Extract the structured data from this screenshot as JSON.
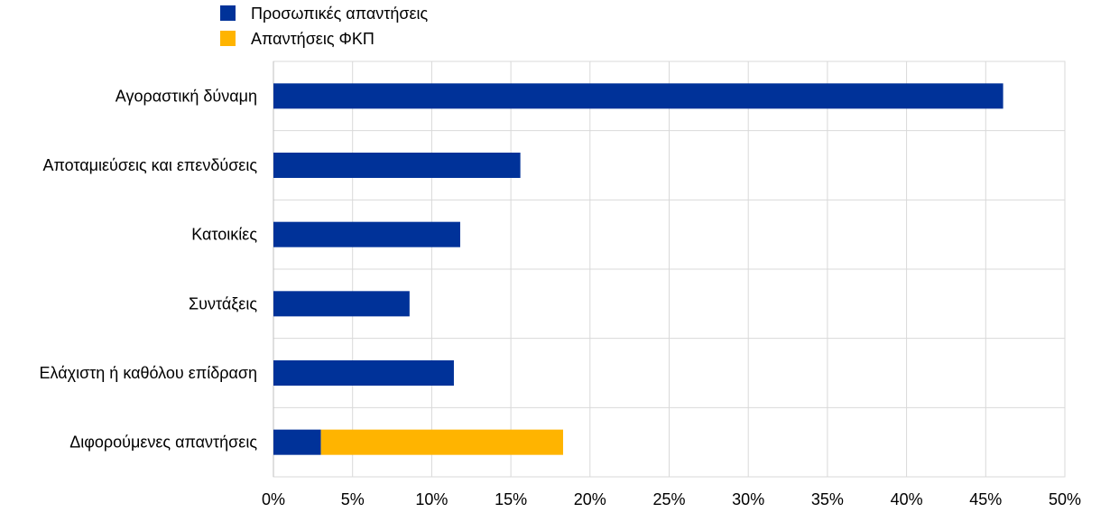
{
  "chart_data": {
    "type": "bar",
    "orientation": "horizontal",
    "stacked": true,
    "categories": [
      "Αγοραστική δύναμη",
      "Αποταμιεύσεις και επενδύσεις",
      "Κατοικίες",
      "Συντάξεις",
      "Ελάχιστη ή καθόλου επίδραση",
      "Διφορούμενες απαντήσεις"
    ],
    "series": [
      {
        "name": "Προσωπικές απαντήσεις",
        "color": "#003299",
        "values": [
          46.1,
          15.6,
          11.8,
          8.6,
          11.4,
          3.0
        ]
      },
      {
        "name": "Απαντήσεις ΦΚΠ",
        "color": "#FFB400",
        "values": [
          0,
          0,
          0,
          0,
          0,
          15.3
        ]
      }
    ],
    "xlim": [
      0,
      50
    ],
    "xticks": [
      "0%",
      "5%",
      "10%",
      "15%",
      "20%",
      "25%",
      "30%",
      "35%",
      "40%",
      "45%",
      "50%"
    ],
    "xlabel": "",
    "ylabel": "",
    "title": "",
    "grid": true,
    "legend": "top-left"
  }
}
